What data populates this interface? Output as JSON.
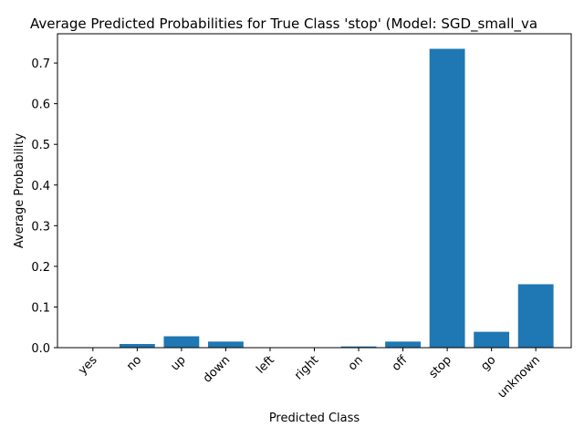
{
  "chart_data": {
    "type": "bar",
    "title": "Average Predicted Probabilities for True Class 'stop' (Model: SGD_small_va",
    "xlabel": "Predicted Class",
    "ylabel": "Average Probability",
    "categories": [
      "yes",
      "no",
      "up",
      "down",
      "left",
      "right",
      "on",
      "off",
      "stop",
      "go",
      "unknown"
    ],
    "values": [
      0.001,
      0.009,
      0.028,
      0.015,
      0.001,
      0.001,
      0.003,
      0.015,
      0.735,
      0.039,
      0.156
    ],
    "ylim": [
      0,
      0.772
    ],
    "yticks": [
      0.0,
      0.1,
      0.2,
      0.3,
      0.4,
      0.5,
      0.6,
      0.7
    ],
    "ytick_labels": [
      "0.0",
      "0.1",
      "0.2",
      "0.3",
      "0.4",
      "0.5",
      "0.6",
      "0.7"
    ],
    "bar_color": "#1f77b4",
    "grid": false,
    "legend": "none",
    "xtick_rotation": 45
  }
}
